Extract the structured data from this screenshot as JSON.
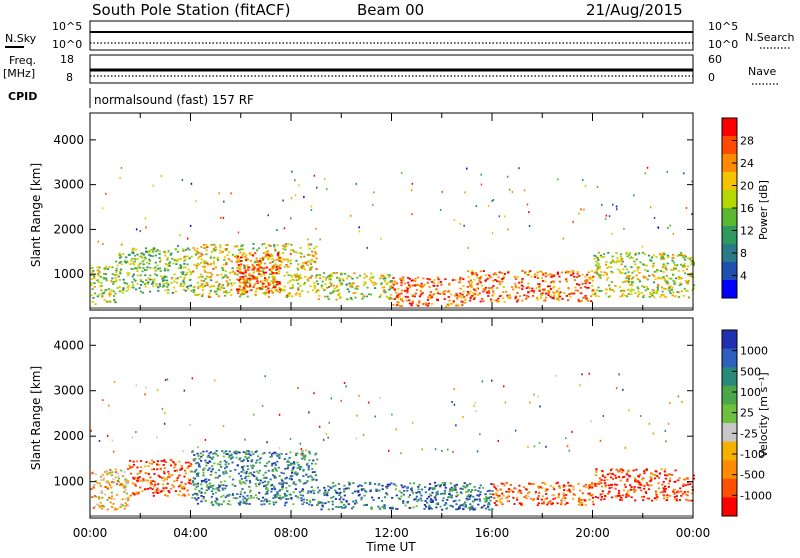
{
  "header": {
    "title": "South Pole Station (fitACF)",
    "beam": "Beam 00",
    "date": "21/Aug/2015"
  },
  "summary": {
    "nsky_label": "N.Sky",
    "nsearch_label": "N.Search",
    "freq_label_1": "Freq.",
    "freq_label_2": "[MHz]",
    "nave_label": "Nave",
    "cpid_label": "CPID",
    "cpid_value": "normalsound (fast) 157 RF",
    "noise_ticks": [
      "10^5",
      "10^0"
    ],
    "freq_ticks": [
      "18",
      "8"
    ],
    "nave_ticks": [
      "60",
      "0"
    ]
  },
  "chart_data": [
    {
      "type": "heatmap",
      "name": "power",
      "ylabel": "Slant Range [km]",
      "y_ticks": [
        1000,
        2000,
        3000,
        4000
      ],
      "ylim": [
        200,
        4600
      ],
      "xlim": [
        0,
        24
      ],
      "colorbar": {
        "label": "Power [dB]",
        "ticks": [
          "28",
          "24",
          "20",
          "16",
          "12",
          "8",
          "4"
        ],
        "colors": [
          "#ff0000",
          "#ff4a00",
          "#ff8c00",
          "#f5c400",
          "#b4d800",
          "#5cb830",
          "#2f9a60",
          "#2a7a8a",
          "#1f50b0",
          "#0000ff"
        ]
      },
      "features": [
        {
          "x0": 0.0,
          "x1": 1.0,
          "y0": 350,
          "y1": 1200,
          "level": 0.55
        },
        {
          "x0": 1.0,
          "x1": 4.0,
          "y0": 600,
          "y1": 1600,
          "level": 0.45
        },
        {
          "x0": 4.0,
          "x1": 9.0,
          "y0": 500,
          "y1": 1700,
          "level": 0.6
        },
        {
          "x0": 5.8,
          "x1": 7.6,
          "y0": 600,
          "y1": 1500,
          "level": 0.85
        },
        {
          "x0": 9.0,
          "x1": 12.0,
          "y0": 450,
          "y1": 1050,
          "level": 0.55
        },
        {
          "x0": 12.0,
          "x1": 15.0,
          "y0": 300,
          "y1": 950,
          "level": 0.85
        },
        {
          "x0": 15.0,
          "x1": 20.0,
          "y0": 400,
          "y1": 1100,
          "level": 0.8
        },
        {
          "x0": 20.0,
          "x1": 24.0,
          "y0": 500,
          "y1": 1500,
          "level": 0.55
        }
      ]
    },
    {
      "type": "heatmap",
      "name": "velocity",
      "ylabel": "Slant Range [km]",
      "xlabel": "Time UT",
      "x_ticks": [
        "00:00",
        "04:00",
        "08:00",
        "12:00",
        "16:00",
        "20:00",
        "00:00"
      ],
      "y_ticks": [
        1000,
        2000,
        3000,
        4000
      ],
      "ylim": [
        200,
        4600
      ],
      "xlim": [
        0,
        24
      ],
      "colorbar": {
        "label": "Velocity [m s⁻¹]",
        "ticks": [
          "1000",
          "500",
          "100",
          "25",
          "-25",
          "-100",
          "-500",
          "-1000"
        ],
        "colors": [
          "#2030b0",
          "#2f60c0",
          "#2a8a7a",
          "#4aa84a",
          "#70c040",
          "#c8c8c8",
          "#f5b000",
          "#ff8c00",
          "#ff5000",
          "#ff0000"
        ]
      },
      "features": [
        {
          "x0": 0.0,
          "x1": 1.5,
          "y0": 400,
          "y1": 1300,
          "level": 0.35
        },
        {
          "x0": 1.5,
          "x1": 4.0,
          "y0": 700,
          "y1": 1500,
          "level": 0.15
        },
        {
          "x0": 4.0,
          "x1": 9.0,
          "y0": 500,
          "y1": 1700,
          "level": 0.75
        },
        {
          "x0": 9.0,
          "x1": 16.0,
          "y0": 400,
          "y1": 1000,
          "level": 0.8
        },
        {
          "x0": 16.0,
          "x1": 20.0,
          "y0": 500,
          "y1": 1000,
          "level": 0.2
        },
        {
          "x0": 20.0,
          "x1": 24.0,
          "y0": 600,
          "y1": 1300,
          "level": 0.1
        }
      ]
    }
  ]
}
